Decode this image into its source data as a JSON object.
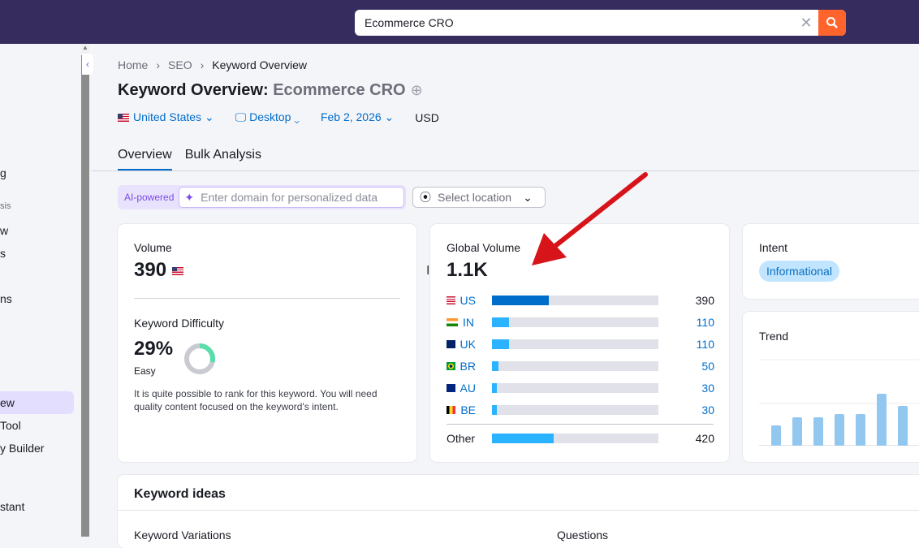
{
  "search": {
    "value": "Ecommerce CRO"
  },
  "sidebar": {
    "items": [
      {
        "label": "g",
        "small": false
      },
      {
        "label": "sis",
        "small": true
      },
      {
        "label": "w",
        "small": false
      },
      {
        "label": "s",
        "small": false
      },
      {
        "label": "ns",
        "small": false
      },
      {
        "label": "ew",
        "small": false,
        "active": true
      },
      {
        "label": "Tool",
        "small": false
      },
      {
        "label": "y Builder",
        "small": false
      },
      {
        "label": "stant",
        "small": false
      }
    ]
  },
  "breadcrumb": [
    "Home",
    "SEO",
    "Keyword Overview"
  ],
  "title": {
    "prefix": "Keyword Overview:",
    "keyword": "Ecommerce CRO"
  },
  "filters": {
    "country": "United States",
    "device": "Desktop",
    "date": "Feb 2, 2026",
    "currency": "USD"
  },
  "tabs": [
    "Overview",
    "Bulk Analysis"
  ],
  "ai": {
    "label": "AI-powered",
    "placeholder": "Enter domain for personalized data"
  },
  "location": {
    "placeholder": "Select location"
  },
  "volume": {
    "label": "Volume",
    "value": "390"
  },
  "difficulty": {
    "label": "Keyword Difficulty",
    "value": "29%",
    "level": "Easy",
    "percent": 29,
    "color": "#59ddaa",
    "description": "It is quite possible to rank for this keyword. You will need quality content focused on the keyword's intent."
  },
  "global": {
    "label": "Global Volume",
    "value": "1.1K",
    "rows": [
      {
        "code": "US",
        "value": "390",
        "share": 34
      },
      {
        "code": "IN",
        "value": "110",
        "share": 10
      },
      {
        "code": "UK",
        "value": "110",
        "share": 10
      },
      {
        "code": "BR",
        "value": "50",
        "share": 4
      },
      {
        "code": "AU",
        "value": "30",
        "share": 3
      },
      {
        "code": "BE",
        "value": "30",
        "share": 3
      }
    ],
    "other": {
      "label": "Other",
      "value": "420",
      "share": 37
    }
  },
  "intent": {
    "label": "Intent",
    "value": "Informational"
  },
  "trend": {
    "label": "Trend",
    "values": [
      25,
      35,
      35,
      39,
      39,
      64,
      49
    ]
  },
  "ideas": {
    "title": "Keyword ideas",
    "variations": "Keyword Variations",
    "questions": "Questions"
  }
}
